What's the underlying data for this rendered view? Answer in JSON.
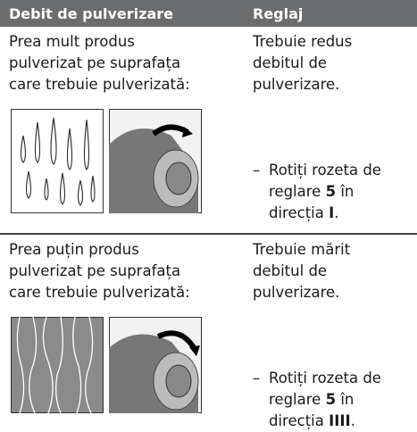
{
  "header": {
    "col1": "Debit de pulverizare",
    "col2": "Reglaj"
  },
  "rows": [
    {
      "problem": [
        "Prea mult produs",
        "pulverizat pe suprafața",
        "care trebuie pulverizată:"
      ],
      "remedy": [
        "Trebuie redus",
        "debitul de",
        "pulverizare."
      ],
      "instruction": {
        "dash": "–",
        "text": "Rotiți rozeta de reglare",
        "knob": "5",
        "mid": "în direcția",
        "direction": "I",
        "end": "."
      }
    },
    {
      "problem": [
        "Prea puțin produs",
        "pulverizat pe suprafața",
        "care trebuie pulverizată:"
      ],
      "remedy": [
        "Trebuie mărit",
        "debitul de",
        "pulverizare."
      ],
      "instruction": {
        "dash": "–",
        "text": "Rotiți rozeta de reglare",
        "knob": "5",
        "mid": "în direcția",
        "direction": "IIII",
        "end": "."
      }
    }
  ]
}
